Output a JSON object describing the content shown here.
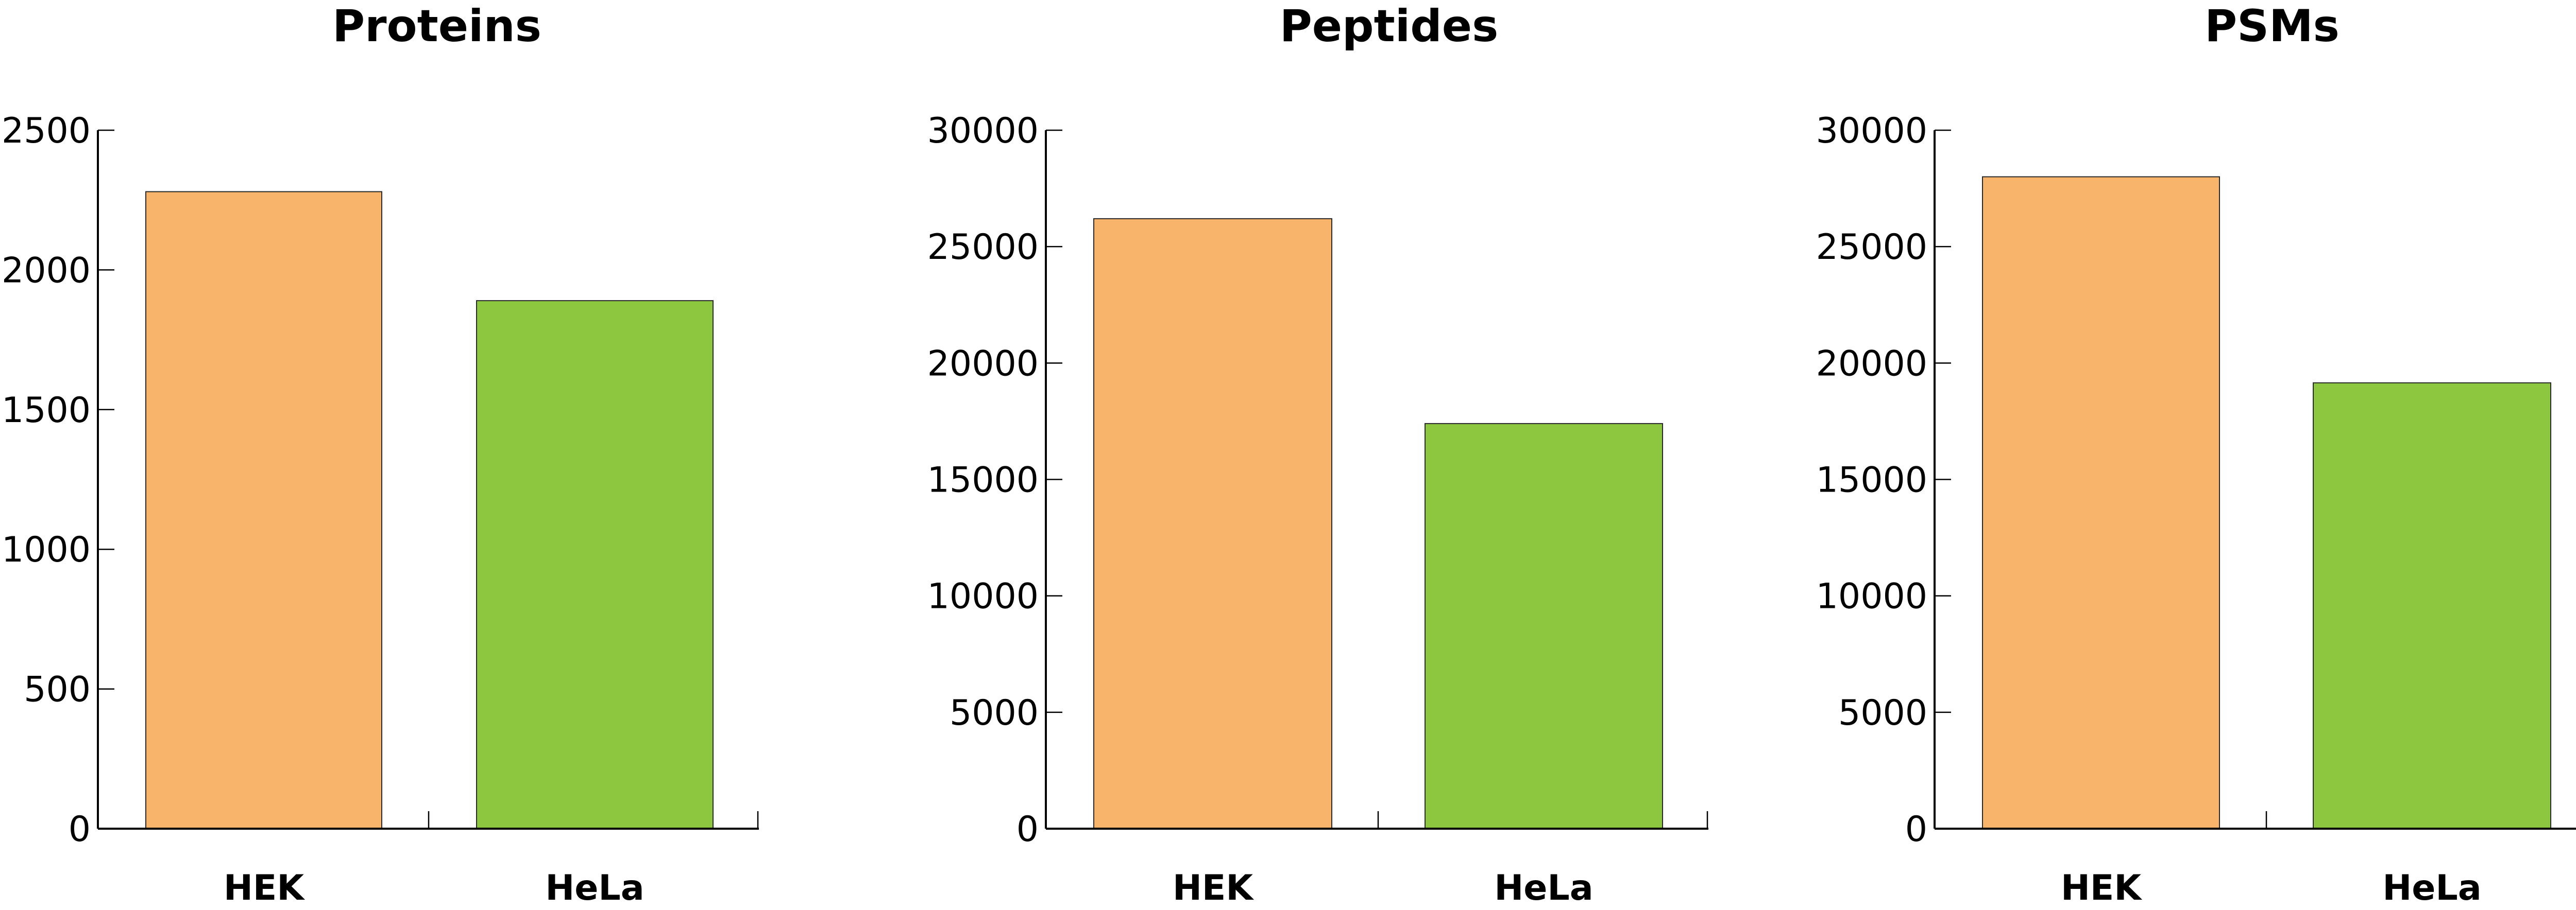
{
  "chart_data": [
    {
      "type": "bar",
      "title": "Proteins",
      "categories": [
        "HEK",
        "HeLa"
      ],
      "values": [
        2280,
        1890
      ],
      "ylim": [
        0,
        2500
      ],
      "yticks": [
        0,
        500,
        1000,
        1500,
        2000,
        2500
      ],
      "colors": [
        "#F9B46C",
        "#8DC63F"
      ],
      "xlabel": "",
      "ylabel": ""
    },
    {
      "type": "bar",
      "title": "Peptides",
      "categories": [
        "HEK",
        "HeLa"
      ],
      "values": [
        26200,
        17400
      ],
      "ylim": [
        0,
        30000
      ],
      "yticks": [
        0,
        5000,
        10000,
        15000,
        20000,
        25000,
        30000
      ],
      "colors": [
        "#F9B46C",
        "#8DC63F"
      ],
      "xlabel": "",
      "ylabel": ""
    },
    {
      "type": "bar",
      "title": "PSMs",
      "categories": [
        "HEK",
        "HeLa"
      ],
      "values": [
        28000,
        19150
      ],
      "ylim": [
        0,
        30000
      ],
      "yticks": [
        0,
        5000,
        10000,
        15000,
        20000,
        25000,
        30000
      ],
      "colors": [
        "#F9B46C",
        "#8DC63F"
      ],
      "xlabel": "",
      "ylabel": ""
    }
  ]
}
